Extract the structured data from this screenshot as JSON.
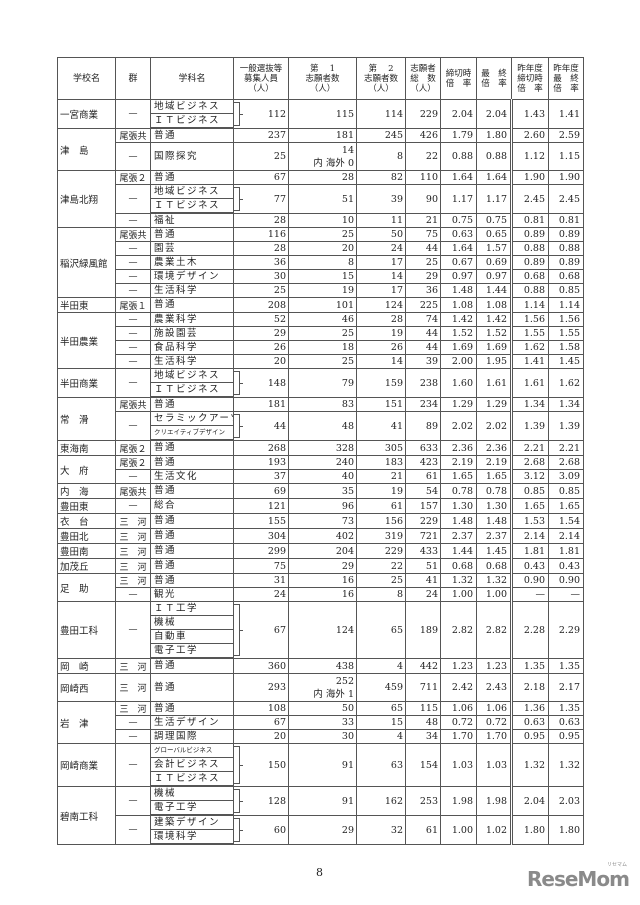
{
  "headers": [
    "学校名",
    "群",
    "学科名",
    "一般選抜等\n募集人員\n（人）",
    "第　 1\n志願者数\n（人）",
    "第　 2\n志願者数\n（人）",
    "志願者\n総　数\n（人）",
    "締切時\n倍　率",
    "最　終\n倍　率",
    "昨年度\n締切時\n倍　率",
    "昨年度\n最　終\n倍　率"
  ],
  "schools": [
    {
      "name": "一宮商業",
      "entries": [
        {
          "group": "—",
          "subjects": [
            "地域ビジネス",
            "ＩＴビジネス"
          ],
          "values": [
            "112",
            "115",
            "114",
            "229",
            "2.04",
            "2.04",
            "1.43",
            "1.41"
          ]
        }
      ]
    },
    {
      "name": "津　島",
      "entries": [
        {
          "group": "尾張共",
          "subjects": [
            "普通"
          ],
          "values": [
            "237",
            "181",
            "245",
            "426",
            "1.79",
            "1.80",
            "2.60",
            "2.59"
          ]
        },
        {
          "group": "—",
          "subjects": [
            "国際探究"
          ],
          "values": [
            "25",
            "14",
            "8",
            "22",
            "0.88",
            "0.88",
            "1.12",
            "1.15"
          ],
          "first_note": "内 海外 0"
        }
      ]
    },
    {
      "name": "津島北翔",
      "entries": [
        {
          "group": "尾張２",
          "subjects": [
            "普通"
          ],
          "values": [
            "67",
            "28",
            "82",
            "110",
            "1.64",
            "1.64",
            "1.90",
            "1.90"
          ]
        },
        {
          "group": "—",
          "subjects": [
            "地域ビジネス",
            "ＩＴビジネス"
          ],
          "values": [
            "77",
            "51",
            "39",
            "90",
            "1.17",
            "1.17",
            "2.45",
            "2.45"
          ]
        },
        {
          "group": "—",
          "subjects": [
            "福祉"
          ],
          "values": [
            "28",
            "10",
            "11",
            "21",
            "0.75",
            "0.75",
            "0.81",
            "0.81"
          ]
        }
      ]
    },
    {
      "name": "稲沢緑風館",
      "entries": [
        {
          "group": "尾張共",
          "subjects": [
            "普通"
          ],
          "values": [
            "116",
            "25",
            "50",
            "75",
            "0.63",
            "0.65",
            "0.89",
            "0.89"
          ]
        },
        {
          "group": "—",
          "subjects": [
            "園芸"
          ],
          "values": [
            "28",
            "20",
            "24",
            "44",
            "1.64",
            "1.57",
            "0.88",
            "0.88"
          ]
        },
        {
          "group": "—",
          "subjects": [
            "農業土木"
          ],
          "values": [
            "36",
            "8",
            "17",
            "25",
            "0.67",
            "0.69",
            "0.89",
            "0.89"
          ]
        },
        {
          "group": "—",
          "subjects": [
            "環境デザイン"
          ],
          "values": [
            "30",
            "15",
            "14",
            "29",
            "0.97",
            "0.97",
            "0.68",
            "0.68"
          ]
        },
        {
          "group": "—",
          "subjects": [
            "生活科学"
          ],
          "values": [
            "25",
            "19",
            "17",
            "36",
            "1.48",
            "1.44",
            "0.88",
            "0.85"
          ]
        }
      ]
    },
    {
      "name": "半田東",
      "entries": [
        {
          "group": "尾張１",
          "subjects": [
            "普通"
          ],
          "values": [
            "208",
            "101",
            "124",
            "225",
            "1.08",
            "1.08",
            "1.14",
            "1.14"
          ]
        }
      ]
    },
    {
      "name": "半田農業",
      "entries": [
        {
          "group": "—",
          "subjects": [
            "農業科学"
          ],
          "values": [
            "52",
            "46",
            "28",
            "74",
            "1.42",
            "1.42",
            "1.56",
            "1.56"
          ]
        },
        {
          "group": "—",
          "subjects": [
            "施設園芸"
          ],
          "values": [
            "29",
            "25",
            "19",
            "44",
            "1.52",
            "1.52",
            "1.55",
            "1.55"
          ]
        },
        {
          "group": "—",
          "subjects": [
            "食品科学"
          ],
          "values": [
            "26",
            "18",
            "26",
            "44",
            "1.69",
            "1.69",
            "1.62",
            "1.58"
          ]
        },
        {
          "group": "—",
          "subjects": [
            "生活科学"
          ],
          "values": [
            "20",
            "25",
            "14",
            "39",
            "2.00",
            "1.95",
            "1.41",
            "1.45"
          ]
        }
      ]
    },
    {
      "name": "半田商業",
      "entries": [
        {
          "group": "—",
          "subjects": [
            "地域ビジネス",
            "ＩＴビジネス"
          ],
          "values": [
            "148",
            "79",
            "159",
            "238",
            "1.60",
            "1.61",
            "1.61",
            "1.62"
          ]
        }
      ]
    },
    {
      "name": "常　滑",
      "entries": [
        {
          "group": "尾張共",
          "subjects": [
            "普通"
          ],
          "values": [
            "181",
            "83",
            "151",
            "234",
            "1.29",
            "1.29",
            "1.34",
            "1.34"
          ]
        },
        {
          "group": "—",
          "subjects": [
            "セラミックアーツ",
            "クリエイティブデザイン"
          ],
          "values": [
            "44",
            "48",
            "41",
            "89",
            "2.02",
            "2.02",
            "1.39",
            "1.39"
          ]
        }
      ]
    },
    {
      "name": "東海南",
      "entries": [
        {
          "group": "尾張２",
          "subjects": [
            "普通"
          ],
          "values": [
            "268",
            "328",
            "305",
            "633",
            "2.36",
            "2.36",
            "2.21",
            "2.21"
          ]
        }
      ]
    },
    {
      "name": "大　府",
      "entries": [
        {
          "group": "尾張２",
          "subjects": [
            "普通"
          ],
          "values": [
            "193",
            "240",
            "183",
            "423",
            "2.19",
            "2.19",
            "2.68",
            "2.68"
          ]
        },
        {
          "group": "—",
          "subjects": [
            "生活文化"
          ],
          "values": [
            "37",
            "40",
            "21",
            "61",
            "1.65",
            "1.65",
            "3.12",
            "3.09"
          ]
        }
      ]
    },
    {
      "name": "内　海",
      "entries": [
        {
          "group": "尾張共",
          "subjects": [
            "普通"
          ],
          "values": [
            "69",
            "35",
            "19",
            "54",
            "0.78",
            "0.78",
            "0.85",
            "0.85"
          ]
        }
      ]
    },
    {
      "name": "豊田東",
      "entries": [
        {
          "group": "—",
          "subjects": [
            "総合"
          ],
          "values": [
            "121",
            "96",
            "61",
            "157",
            "1.30",
            "1.30",
            "1.65",
            "1.65"
          ]
        }
      ]
    },
    {
      "name": "衣　台",
      "entries": [
        {
          "group": "三　河",
          "subjects": [
            "普通"
          ],
          "values": [
            "155",
            "73",
            "156",
            "229",
            "1.48",
            "1.48",
            "1.53",
            "1.54"
          ]
        }
      ]
    },
    {
      "name": "豊田北",
      "entries": [
        {
          "group": "三　河",
          "subjects": [
            "普通"
          ],
          "values": [
            "304",
            "402",
            "319",
            "721",
            "2.37",
            "2.37",
            "2.14",
            "2.14"
          ]
        }
      ]
    },
    {
      "name": "豊田南",
      "entries": [
        {
          "group": "三　河",
          "subjects": [
            "普通"
          ],
          "values": [
            "299",
            "204",
            "229",
            "433",
            "1.44",
            "1.45",
            "1.81",
            "1.81"
          ]
        }
      ]
    },
    {
      "name": "加茂丘",
      "entries": [
        {
          "group": "三　河",
          "subjects": [
            "普通"
          ],
          "values": [
            "75",
            "29",
            "22",
            "51",
            "0.68",
            "0.68",
            "0.43",
            "0.43"
          ]
        }
      ]
    },
    {
      "name": "足　助",
      "entries": [
        {
          "group": "三　河",
          "subjects": [
            "普通"
          ],
          "values": [
            "31",
            "16",
            "25",
            "41",
            "1.32",
            "1.32",
            "0.90",
            "0.90"
          ]
        },
        {
          "group": "—",
          "subjects": [
            "観光"
          ],
          "values": [
            "24",
            "16",
            "8",
            "24",
            "1.00",
            "1.00",
            "—",
            "—"
          ]
        }
      ]
    },
    {
      "name": "豊田工科",
      "entries": [
        {
          "group": "—",
          "subjects": [
            "ＩＴ工学",
            "機械",
            "自動車",
            "電子工学"
          ],
          "values": [
            "67",
            "124",
            "65",
            "189",
            "2.82",
            "2.82",
            "2.28",
            "2.29"
          ]
        }
      ]
    },
    {
      "name": "岡　崎",
      "entries": [
        {
          "group": "三　河",
          "subjects": [
            "普通"
          ],
          "values": [
            "360",
            "438",
            "4",
            "442",
            "1.23",
            "1.23",
            "1.35",
            "1.35"
          ]
        }
      ]
    },
    {
      "name": "岡崎西",
      "entries": [
        {
          "group": "三　河",
          "subjects": [
            "普通"
          ],
          "values": [
            "293",
            "252",
            "459",
            "711",
            "2.42",
            "2.43",
            "2.18",
            "2.17"
          ],
          "first_note": "内 海外 1"
        }
      ]
    },
    {
      "name": "岩　津",
      "entries": [
        {
          "group": "三　河",
          "subjects": [
            "普通"
          ],
          "values": [
            "108",
            "50",
            "65",
            "115",
            "1.06",
            "1.06",
            "1.36",
            "1.35"
          ]
        },
        {
          "group": "—",
          "subjects": [
            "生活デザイン"
          ],
          "values": [
            "67",
            "33",
            "15",
            "48",
            "0.72",
            "0.72",
            "0.63",
            "0.63"
          ]
        },
        {
          "group": "—",
          "subjects": [
            "調理国際"
          ],
          "values": [
            "20",
            "30",
            "4",
            "34",
            "1.70",
            "1.70",
            "0.95",
            "0.95"
          ]
        }
      ]
    },
    {
      "name": "岡崎商業",
      "entries": [
        {
          "group": "—",
          "subjects": [
            "グローバルビジネス",
            "会計ビジネス",
            "ＩＴビジネス"
          ],
          "values": [
            "150",
            "91",
            "63",
            "154",
            "1.03",
            "1.03",
            "1.32",
            "1.32"
          ]
        }
      ]
    },
    {
      "name": "碧南工科",
      "entries": [
        {
          "group": "—",
          "subjects": [
            "機械",
            "電子工学"
          ],
          "values": [
            "128",
            "91",
            "162",
            "253",
            "1.98",
            "1.98",
            "2.04",
            "2.03"
          ]
        },
        {
          "group": "—",
          "subjects": [
            "建築デザイン",
            "環境科学"
          ],
          "values": [
            "60",
            "29",
            "32",
            "61",
            "1.00",
            "1.02",
            "1.80",
            "1.80"
          ]
        }
      ]
    }
  ],
  "page_number": "8",
  "logo": {
    "text": "ReseMom",
    "sub": "リセマム"
  }
}
